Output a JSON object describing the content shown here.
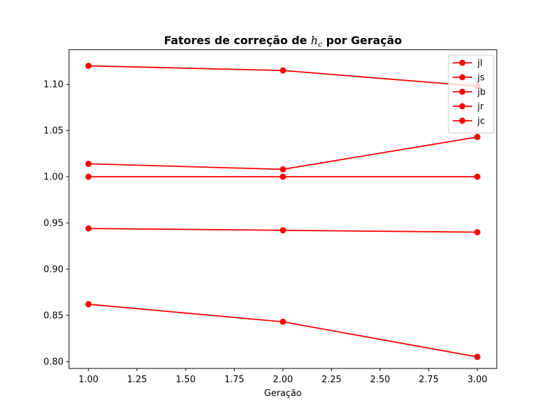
{
  "chart_data": {
    "type": "line",
    "title": {
      "prefix": "Fatores de correção de ",
      "math_main": "h",
      "math_sub": "c",
      "suffix": " por Geração"
    },
    "xlabel": "Geração",
    "ylabel": "",
    "xlim": [
      0.9,
      3.1
    ],
    "ylim": [
      0.7925,
      1.1375
    ],
    "xticks": [
      1.0,
      1.25,
      1.5,
      1.75,
      2.0,
      2.25,
      2.5,
      2.75,
      3.0
    ],
    "xtick_labels": [
      "1.00",
      "1.25",
      "1.50",
      "1.75",
      "2.00",
      "2.25",
      "2.50",
      "2.75",
      "3.00"
    ],
    "yticks": [
      0.8,
      0.85,
      0.9,
      0.95,
      1.0,
      1.05,
      1.1
    ],
    "ytick_labels": [
      "0.80",
      "0.85",
      "0.90",
      "0.95",
      "1.00",
      "1.05",
      "1.10"
    ],
    "grid": false,
    "legend_position": "top-right",
    "x": [
      1,
      2,
      3
    ],
    "series": [
      {
        "name": "jl",
        "color": "#ff0000",
        "marker": "circle",
        "values": [
          1.12,
          1.115,
          1.098
        ]
      },
      {
        "name": "js",
        "color": "#ff0000",
        "marker": "circle",
        "values": [
          1.014,
          1.008,
          1.043
        ]
      },
      {
        "name": "jb",
        "color": "#ff0000",
        "marker": "circle",
        "values": [
          1.0,
          1.0,
          1.0
        ]
      },
      {
        "name": "jr",
        "color": "#ff0000",
        "marker": "circle",
        "values": [
          0.944,
          0.942,
          0.94
        ]
      },
      {
        "name": "jc",
        "color": "#ff0000",
        "marker": "circle",
        "values": [
          0.862,
          0.843,
          0.805
        ]
      }
    ]
  }
}
